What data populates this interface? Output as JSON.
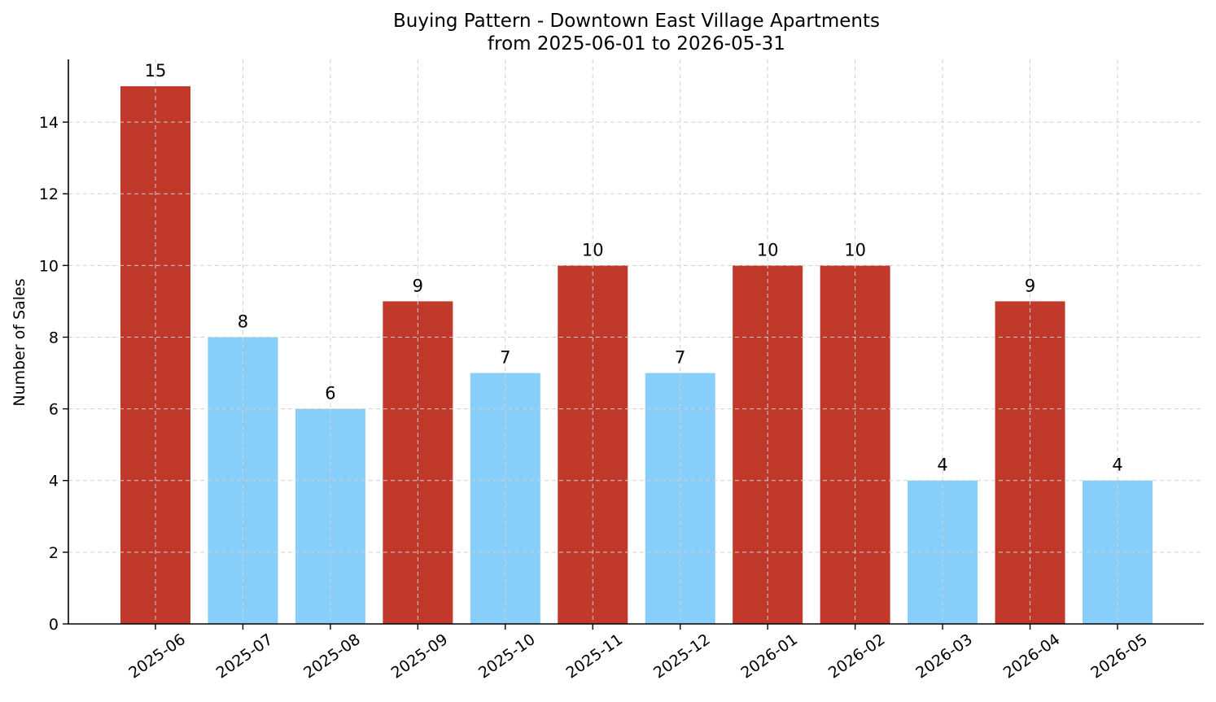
{
  "chart_data": {
    "type": "bar",
    "title": "Buying Pattern - Downtown East Village Apartments",
    "subtitle": "from 2025-06-01 to 2026-05-31",
    "xlabel": "",
    "ylabel": "Number of Sales",
    "categories": [
      "2025-06",
      "2025-07",
      "2025-08",
      "2025-09",
      "2025-10",
      "2025-11",
      "2025-12",
      "2026-01",
      "2026-02",
      "2026-03",
      "2026-04",
      "2026-05"
    ],
    "values": [
      15,
      8,
      6,
      9,
      7,
      10,
      7,
      10,
      10,
      4,
      9,
      4
    ],
    "bar_colors": [
      "#c0392b",
      "#87cefa",
      "#87cefa",
      "#c0392b",
      "#87cefa",
      "#c0392b",
      "#87cefa",
      "#c0392b",
      "#c0392b",
      "#87cefa",
      "#c0392b",
      "#87cefa"
    ],
    "ylim": [
      0,
      15.75
    ],
    "yticks": [
      0,
      2,
      4,
      6,
      8,
      10,
      12,
      14
    ],
    "grid": true,
    "legend": null,
    "data_labels": true
  }
}
